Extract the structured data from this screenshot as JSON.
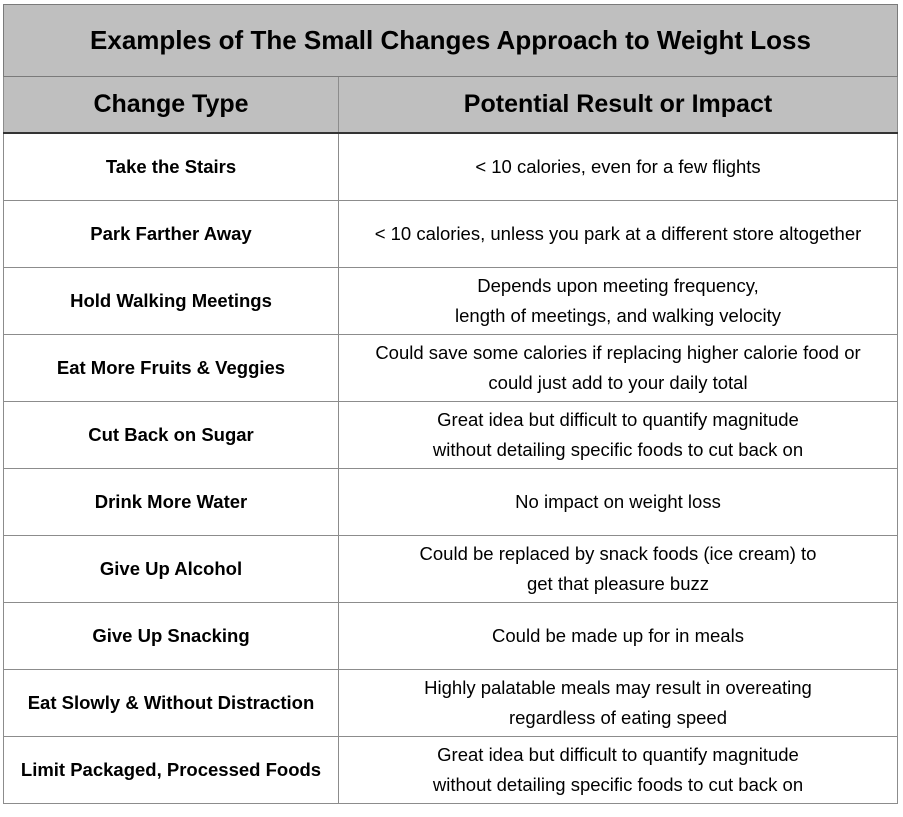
{
  "title": "Examples of The Small Changes Approach to Weight Loss",
  "headers": [
    "Change Type",
    "Potential Result or Impact"
  ],
  "rows": [
    {
      "type": "Take the Stairs",
      "impact": [
        "< 10 calories, even for a few flights"
      ]
    },
    {
      "type": "Park Farther Away",
      "impact": [
        "< 10 calories, unless you park at a different store altogether"
      ]
    },
    {
      "type": "Hold Walking Meetings",
      "impact": [
        "Depends upon meeting frequency,",
        "length of meetings, and walking velocity"
      ]
    },
    {
      "type": "Eat More Fruits & Veggies",
      "impact": [
        "Could save some calories if replacing higher calorie food or",
        "could just add to your daily total"
      ]
    },
    {
      "type": "Cut Back on Sugar",
      "impact": [
        "Great idea but difficult to quantify magnitude",
        "without detailing specific foods to cut back on"
      ]
    },
    {
      "type": "Drink More Water",
      "impact": [
        "No impact on weight loss"
      ]
    },
    {
      "type": "Give Up Alcohol",
      "impact": [
        "Could be replaced by snack foods (ice cream) to",
        "get that pleasure buzz"
      ]
    },
    {
      "type": "Give Up Snacking",
      "impact": [
        "Could be made up for in meals"
      ]
    },
    {
      "type": "Eat Slowly & Without Distraction",
      "impact": [
        "Highly palatable meals may result in overeating",
        "regardless of eating speed"
      ]
    },
    {
      "type": "Limit Packaged, Processed Foods",
      "impact": [
        "Great idea but difficult to quantify magnitude",
        "without detailing specific foods to cut back on"
      ]
    }
  ]
}
